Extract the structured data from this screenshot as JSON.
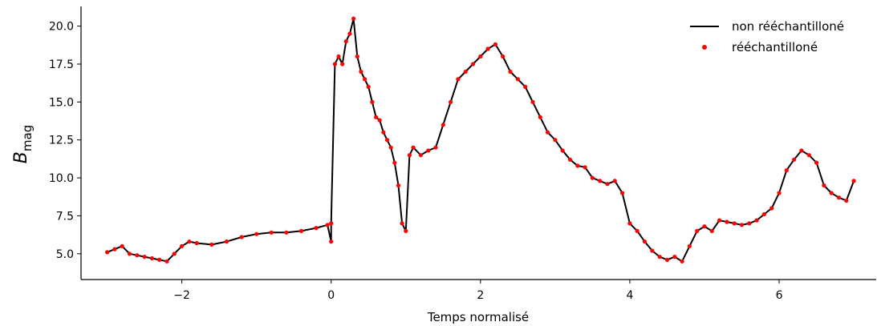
{
  "chart_data": {
    "type": "line",
    "xlabel": "Temps normalisé",
    "ylabel_main": "B",
    "ylabel_sub": "mag",
    "xlim": [
      -3.35,
      7.3
    ],
    "ylim": [
      3.3,
      21.3
    ],
    "xticks": [
      -2,
      0,
      2,
      4,
      6
    ],
    "xtick_labels": [
      "−2",
      "0",
      "2",
      "4",
      "6"
    ],
    "yticks": [
      5.0,
      7.5,
      10.0,
      12.5,
      15.0,
      17.5,
      20.0
    ],
    "ytick_labels": [
      "5.0",
      "7.5",
      "10.0",
      "12.5",
      "15.0",
      "17.5",
      "20.0"
    ],
    "legend_position": "top-right",
    "line_color": "#000000",
    "marker_color": "#ff0000",
    "series": [
      {
        "name": "non rééchantilloné",
        "style": "line",
        "x": [
          -3.0,
          -2.9,
          -2.8,
          -2.7,
          -2.6,
          -2.5,
          -2.4,
          -2.3,
          -2.2,
          -2.1,
          -2.0,
          -1.9,
          -1.8,
          -1.6,
          -1.4,
          -1.2,
          -1.0,
          -0.8,
          -0.6,
          -0.4,
          -0.2,
          -0.05,
          0.0,
          0.0,
          0.05,
          0.1,
          0.15,
          0.2,
          0.25,
          0.3,
          0.35,
          0.4,
          0.45,
          0.5,
          0.55,
          0.6,
          0.65,
          0.7,
          0.75,
          0.8,
          0.85,
          0.9,
          0.95,
          1.0,
          1.05,
          1.1,
          1.2,
          1.3,
          1.4,
          1.5,
          1.6,
          1.7,
          1.8,
          1.9,
          2.0,
          2.1,
          2.2,
          2.3,
          2.4,
          2.5,
          2.6,
          2.7,
          2.8,
          2.9,
          3.0,
          3.1,
          3.2,
          3.3,
          3.4,
          3.5,
          3.6,
          3.7,
          3.8,
          3.9,
          4.0,
          4.1,
          4.2,
          4.3,
          4.4,
          4.5,
          4.6,
          4.7,
          4.8,
          4.9,
          5.0,
          5.1,
          5.2,
          5.3,
          5.4,
          5.5,
          5.6,
          5.7,
          5.8,
          5.9,
          6.0,
          6.1,
          6.2,
          6.3,
          6.4,
          6.5,
          6.6,
          6.7,
          6.8,
          6.9,
          7.0
        ],
        "y": [
          5.1,
          5.3,
          5.5,
          5.0,
          4.9,
          4.8,
          4.7,
          4.6,
          4.5,
          5.0,
          5.5,
          5.8,
          5.7,
          5.6,
          5.8,
          6.1,
          6.3,
          6.4,
          6.4,
          6.5,
          6.7,
          6.9,
          5.8,
          7.0,
          17.5,
          18.0,
          17.5,
          19.0,
          19.5,
          20.5,
          18.0,
          17.0,
          16.5,
          16.0,
          15.0,
          14.0,
          13.8,
          13.0,
          12.5,
          12.0,
          11.0,
          9.5,
          7.0,
          6.5,
          11.5,
          12.0,
          11.5,
          11.8,
          12.0,
          13.5,
          15.0,
          16.5,
          17.0,
          17.5,
          18.0,
          18.5,
          18.8,
          18.0,
          17.0,
          16.5,
          16.0,
          15.0,
          14.0,
          13.0,
          12.5,
          11.8,
          11.2,
          10.8,
          10.7,
          10.0,
          9.8,
          9.6,
          9.8,
          9.0,
          7.0,
          6.5,
          5.8,
          5.2,
          4.8,
          4.6,
          4.8,
          4.5,
          5.5,
          6.5,
          6.8,
          6.5,
          7.2,
          7.1,
          7.0,
          6.9,
          7.0,
          7.2,
          7.6,
          8.0,
          9.0,
          10.5,
          11.2,
          11.8,
          11.5,
          11.0,
          9.5,
          9.0,
          8.7,
          8.5,
          9.8
        ]
      },
      {
        "name": "rééchantilloné",
        "style": "markers",
        "x": [
          -3.0,
          -2.9,
          -2.8,
          -2.7,
          -2.6,
          -2.5,
          -2.4,
          -2.3,
          -2.2,
          -2.1,
          -2.0,
          -1.9,
          -1.8,
          -1.6,
          -1.4,
          -1.2,
          -1.0,
          -0.8,
          -0.6,
          -0.4,
          -0.2,
          -0.05,
          0.0,
          0.0,
          0.05,
          0.1,
          0.15,
          0.2,
          0.25,
          0.3,
          0.35,
          0.4,
          0.45,
          0.5,
          0.55,
          0.6,
          0.65,
          0.7,
          0.75,
          0.8,
          0.85,
          0.9,
          0.95,
          1.0,
          1.05,
          1.1,
          1.2,
          1.3,
          1.4,
          1.5,
          1.6,
          1.7,
          1.8,
          1.9,
          2.0,
          2.1,
          2.2,
          2.3,
          2.4,
          2.5,
          2.6,
          2.7,
          2.8,
          2.9,
          3.0,
          3.1,
          3.2,
          3.3,
          3.4,
          3.5,
          3.6,
          3.7,
          3.8,
          3.9,
          4.0,
          4.1,
          4.2,
          4.3,
          4.4,
          4.5,
          4.6,
          4.7,
          4.8,
          4.9,
          5.0,
          5.1,
          5.2,
          5.3,
          5.4,
          5.5,
          5.6,
          5.7,
          5.8,
          5.9,
          6.0,
          6.1,
          6.2,
          6.3,
          6.4,
          6.5,
          6.6,
          6.7,
          6.8,
          6.9,
          7.0
        ],
        "y": [
          5.1,
          5.3,
          5.5,
          5.0,
          4.9,
          4.8,
          4.7,
          4.6,
          4.5,
          5.0,
          5.5,
          5.8,
          5.7,
          5.6,
          5.8,
          6.1,
          6.3,
          6.4,
          6.4,
          6.5,
          6.7,
          6.9,
          5.8,
          7.0,
          17.5,
          18.0,
          17.5,
          19.0,
          19.5,
          20.5,
          18.0,
          17.0,
          16.5,
          16.0,
          15.0,
          14.0,
          13.8,
          13.0,
          12.5,
          12.0,
          11.0,
          9.5,
          7.0,
          6.5,
          11.5,
          12.0,
          11.5,
          11.8,
          12.0,
          13.5,
          15.0,
          16.5,
          17.0,
          17.5,
          18.0,
          18.5,
          18.8,
          18.0,
          17.0,
          16.5,
          16.0,
          15.0,
          14.0,
          13.0,
          12.5,
          11.8,
          11.2,
          10.8,
          10.7,
          10.0,
          9.8,
          9.6,
          9.8,
          9.0,
          7.0,
          6.5,
          5.8,
          5.2,
          4.8,
          4.6,
          4.8,
          4.5,
          5.5,
          6.5,
          6.8,
          6.5,
          7.2,
          7.1,
          7.0,
          6.9,
          7.0,
          7.2,
          7.6,
          8.0,
          9.0,
          10.5,
          11.2,
          11.8,
          11.5,
          11.0,
          9.5,
          9.0,
          8.7,
          8.5,
          9.8
        ]
      }
    ]
  }
}
